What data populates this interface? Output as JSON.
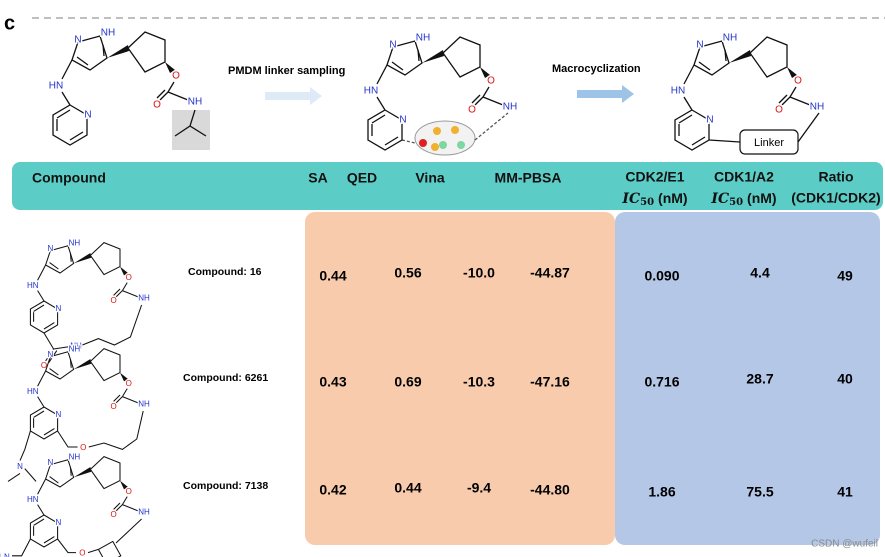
{
  "figure_label": "c",
  "scheme": {
    "step1": "PMDM linker sampling",
    "step2": "Macrocyclization",
    "linker": "Linker",
    "molecules": [
      {
        "atoms": [
          "N",
          "NH",
          "HN",
          "N",
          "O",
          "O",
          "NH"
        ]
      },
      {
        "atoms": [
          "N",
          "NH",
          "HN",
          "N",
          "O",
          "O",
          "NH"
        ]
      },
      {
        "atoms": [
          "N",
          "NH",
          "HN",
          "N",
          "O",
          "O",
          "NH"
        ]
      }
    ]
  },
  "table": {
    "headers": [
      "Compound",
      "SA",
      "QED",
      "Vina",
      "MM-PBSA"
    ],
    "assay_headers": [
      {
        "line1": "CDK2/E1",
        "ic": "IC",
        "sub": "50",
        "unit": "(nM)"
      },
      {
        "line1": "CDK1/A2",
        "ic": "IC",
        "sub": "50",
        "unit": "(nM)"
      }
    ],
    "ratio_header": {
      "line1": "Ratio",
      "line2": "(CDK1/CDK2)"
    },
    "rows": [
      {
        "compound": "Compound: 16",
        "atoms": [
          "N",
          "NH",
          "HN",
          "N",
          "O",
          "O",
          "NH"
        ],
        "extra_atoms": [
          "NH",
          "O"
        ],
        "values": [
          "0.44",
          "0.56",
          "-10.0",
          "-44.87",
          "0.090",
          "4.4",
          "49"
        ]
      },
      {
        "compound": "Compound: 6261",
        "atoms": [
          "N",
          "NH",
          "HN",
          "N",
          "O",
          "O",
          "NH"
        ],
        "extra_atoms": [
          "O",
          "N"
        ],
        "values": [
          "0.43",
          "0.69",
          "-10.3",
          "-47.16",
          "0.716",
          "28.7",
          "40"
        ]
      },
      {
        "compound": "Compound: 7138",
        "atoms": [
          "N",
          "NH",
          "HN",
          "N",
          "O",
          "O",
          "NH"
        ],
        "extra_atoms": [
          "O",
          "H₂N"
        ],
        "values": [
          "0.42",
          "0.44",
          "-9.4",
          "-44.80",
          "1.86",
          "75.5",
          "41"
        ]
      }
    ]
  },
  "watermark": "CSDN @wufeil"
}
